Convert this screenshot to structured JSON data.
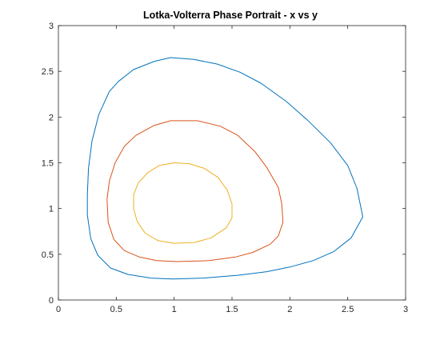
{
  "chart_data": {
    "type": "line",
    "title": "Lotka-Volterra Phase Portrait - x vs y",
    "xlabel": "",
    "ylabel": "",
    "xlim": [
      0,
      3
    ],
    "ylim": [
      0,
      3
    ],
    "xticks": [
      "0",
      "0.5",
      "1",
      "1.5",
      "2",
      "2.5",
      "3"
    ],
    "yticks": [
      "0",
      "0.5",
      "1",
      "1.5",
      "2",
      "2.5",
      "3"
    ],
    "grid": false,
    "legend": "none",
    "series": [
      {
        "color": "#0072BD",
        "points": [
          [
            0.99,
            0.23
          ],
          [
            1.25,
            0.24
          ],
          [
            1.55,
            0.27
          ],
          [
            1.8,
            0.31
          ],
          [
            2.0,
            0.36
          ],
          [
            2.2,
            0.43
          ],
          [
            2.38,
            0.53
          ],
          [
            2.53,
            0.68
          ],
          [
            2.63,
            0.91
          ],
          [
            2.58,
            1.22
          ],
          [
            2.5,
            1.47
          ],
          [
            2.35,
            1.72
          ],
          [
            2.15,
            1.97
          ],
          [
            1.97,
            2.17
          ],
          [
            1.75,
            2.37
          ],
          [
            1.57,
            2.49
          ],
          [
            1.37,
            2.58
          ],
          [
            1.17,
            2.63
          ],
          [
            0.97,
            2.65
          ],
          [
            0.83,
            2.61
          ],
          [
            0.65,
            2.52
          ],
          [
            0.52,
            2.39
          ],
          [
            0.44,
            2.28
          ],
          [
            0.35,
            2.03
          ],
          [
            0.29,
            1.74
          ],
          [
            0.26,
            1.44
          ],
          [
            0.25,
            1.15
          ],
          [
            0.25,
            0.93
          ],
          [
            0.28,
            0.67
          ],
          [
            0.34,
            0.49
          ],
          [
            0.45,
            0.35
          ],
          [
            0.6,
            0.28
          ],
          [
            0.8,
            0.24
          ],
          [
            0.99,
            0.23
          ]
        ]
      },
      {
        "color": "#D95319",
        "points": [
          [
            1.02,
            0.42
          ],
          [
            1.3,
            0.43
          ],
          [
            1.53,
            0.47
          ],
          [
            1.68,
            0.52
          ],
          [
            1.83,
            0.61
          ],
          [
            1.9,
            0.7
          ],
          [
            1.94,
            0.85
          ],
          [
            1.93,
            1.05
          ],
          [
            1.9,
            1.23
          ],
          [
            1.8,
            1.45
          ],
          [
            1.7,
            1.62
          ],
          [
            1.55,
            1.8
          ],
          [
            1.4,
            1.9
          ],
          [
            1.2,
            1.96
          ],
          [
            0.97,
            1.96
          ],
          [
            0.83,
            1.91
          ],
          [
            0.67,
            1.8
          ],
          [
            0.57,
            1.68
          ],
          [
            0.49,
            1.5
          ],
          [
            0.44,
            1.3
          ],
          [
            0.42,
            1.1
          ],
          [
            0.43,
            0.85
          ],
          [
            0.48,
            0.66
          ],
          [
            0.57,
            0.54
          ],
          [
            0.7,
            0.47
          ],
          [
            0.85,
            0.43
          ],
          [
            1.02,
            0.42
          ]
        ]
      },
      {
        "color": "#EDB120",
        "points": [
          [
            1.0,
            0.62
          ],
          [
            1.18,
            0.63
          ],
          [
            1.32,
            0.68
          ],
          [
            1.45,
            0.79
          ],
          [
            1.5,
            0.9
          ],
          [
            1.5,
            1.05
          ],
          [
            1.46,
            1.2
          ],
          [
            1.38,
            1.34
          ],
          [
            1.26,
            1.44
          ],
          [
            1.13,
            1.49
          ],
          [
            1.0,
            1.5
          ],
          [
            0.87,
            1.47
          ],
          [
            0.77,
            1.39
          ],
          [
            0.69,
            1.28
          ],
          [
            0.65,
            1.15
          ],
          [
            0.65,
            1.0
          ],
          [
            0.68,
            0.86
          ],
          [
            0.75,
            0.73
          ],
          [
            0.86,
            0.65
          ],
          [
            1.0,
            0.62
          ]
        ]
      }
    ]
  }
}
